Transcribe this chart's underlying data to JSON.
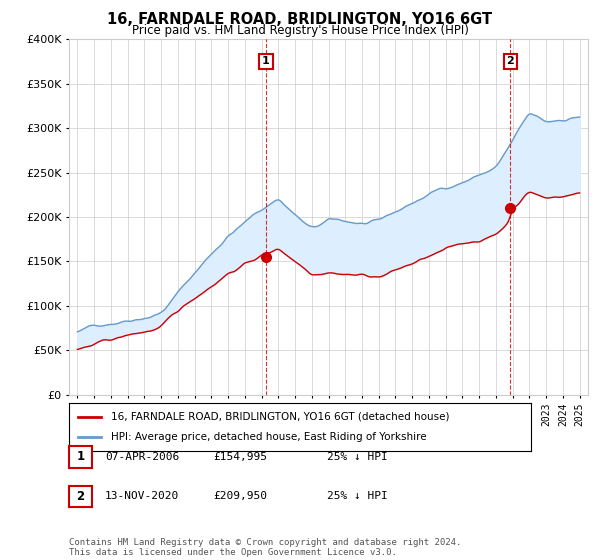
{
  "title": "16, FARNDALE ROAD, BRIDLINGTON, YO16 6GT",
  "subtitle": "Price paid vs. HM Land Registry's House Price Index (HPI)",
  "red_label": "16, FARNDALE ROAD, BRIDLINGTON, YO16 6GT (detached house)",
  "blue_label": "HPI: Average price, detached house, East Riding of Yorkshire",
  "marker1_date": "07-APR-2006",
  "marker1_price": 154995,
  "marker1_year": 2006.27,
  "marker2_date": "13-NOV-2020",
  "marker2_price": 209950,
  "marker2_year": 2020.87,
  "footer": "Contains HM Land Registry data © Crown copyright and database right 2024.\nThis data is licensed under the Open Government Licence v3.0.",
  "xlim": [
    1994.5,
    2025.5
  ],
  "ylim": [
    0,
    400000
  ],
  "red_color": "#cc0000",
  "blue_color": "#6699cc",
  "fill_color": "#ddeeff",
  "background_color": "#ffffff",
  "grid_color": "#cccccc",
  "marker1_num": "1",
  "marker2_num": "2"
}
